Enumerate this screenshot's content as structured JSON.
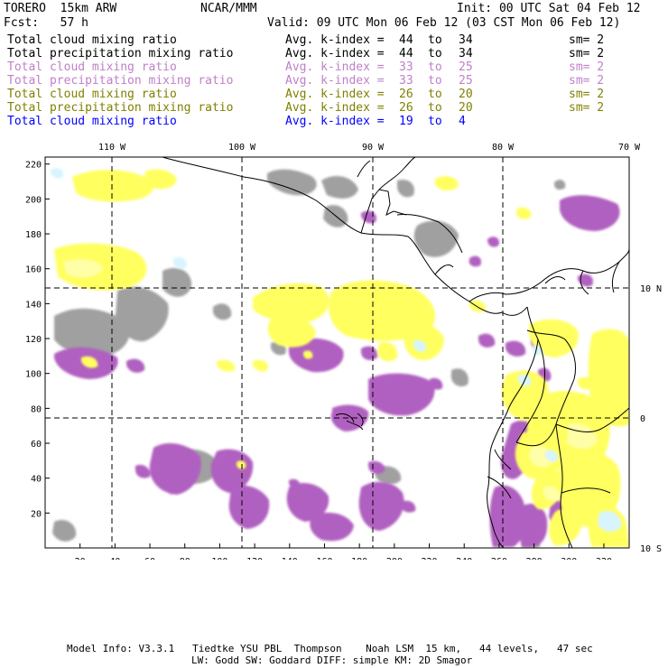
{
  "header": {
    "model": "TORERO  15km ARW",
    "center": "NCAR/MMM",
    "init": "Init: 00 UTC Sat 04 Feb 12",
    "fcst": "Fcst:   57 h",
    "valid": "Valid: 09 UTC Mon 06 Feb 12 (03 CST Mon 06 Feb 12)"
  },
  "legend": [
    {
      "field": "Total cloud mixing ratio",
      "idx": "Avg. k-index =",
      "from": "44",
      "to_word": "to",
      "to": "34",
      "sm": "sm= 2",
      "color": "#000000"
    },
    {
      "field": "Total precipitation mixing ratio",
      "idx": "Avg. k-index =",
      "from": "44",
      "to_word": "to",
      "to": "34",
      "sm": "sm= 2",
      "color": "#000000"
    },
    {
      "field": "Total cloud mixing ratio",
      "idx": "Avg. k-index =",
      "from": "33",
      "to_word": "to",
      "to": "25",
      "sm": "sm= 2",
      "color": "#c080c8"
    },
    {
      "field": "Total precipitation mixing ratio",
      "idx": "Avg. k-index =",
      "from": "33",
      "to_word": "to",
      "to": "25",
      "sm": "sm= 2",
      "color": "#c080c8"
    },
    {
      "field": "Total cloud mixing ratio",
      "idx": "Avg. k-index =",
      "from": "26",
      "to_word": "to",
      "to": "20",
      "sm": "sm= 2",
      "color": "#808000"
    },
    {
      "field": "Total precipitation mixing ratio",
      "idx": "Avg. k-index =",
      "from": "26",
      "to_word": "to",
      "to": "20",
      "sm": "sm= 2",
      "color": "#808000"
    },
    {
      "field": "Total cloud mixing ratio",
      "idx": "Avg. k-index =",
      "from": "19",
      "to_word": "to",
      "to": "4",
      "sm": "",
      "color": "#0000ff"
    }
  ],
  "map": {
    "lon_labels": [
      "110 W",
      "100 W",
      "90 W",
      "80 W",
      "70 W"
    ],
    "lat_labels": [
      "10 N",
      "0",
      "10 S"
    ],
    "x_ticks": [
      "20",
      "40",
      "60",
      "80",
      "100",
      "120",
      "140",
      "160",
      "180",
      "200",
      "220",
      "240",
      "260",
      "280",
      "300",
      "320"
    ],
    "y_ticks": [
      "20",
      "40",
      "60",
      "80",
      "100",
      "120",
      "140",
      "160",
      "180",
      "200",
      "220"
    ],
    "colors": {
      "gray": "#a0a0a0",
      "purple": "#b060c0",
      "yellow": "#ffff60",
      "paleyellow": "#ffffb0",
      "cyan": "#d8f4ff"
    }
  },
  "footer": {
    "line1": "Model Info: V3.3.1   Tiedtke YSU PBL  Thompson    Noah LSM  15 km,   44 levels,   47 sec",
    "line2": "LW: Godd SW: Goddard DIFF: simple KM: 2D Smagor"
  }
}
